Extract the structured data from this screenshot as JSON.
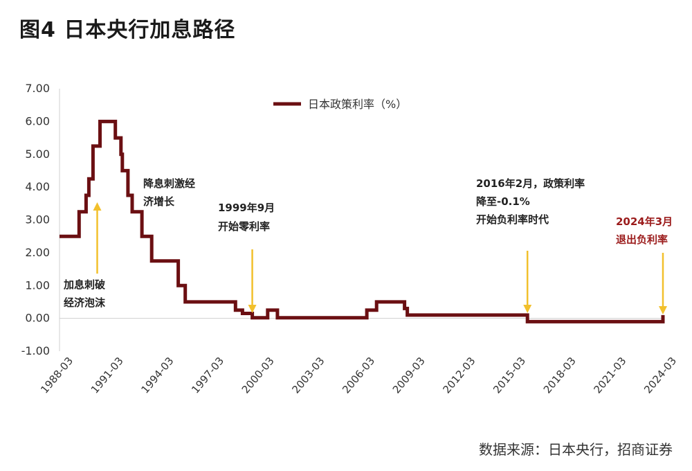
{
  "title": "图4  日本央行加息路径",
  "source": "数据来源：日本央行，招商证券",
  "colors": {
    "line": "#6b0f12",
    "arrow": "#f2c02c",
    "annotation_red": "#9b1b1b"
  },
  "chart_data": {
    "type": "line",
    "legend": {
      "label": "日本政策利率（%）",
      "placement": "top-center"
    },
    "ylim": [
      -1.0,
      7.0
    ],
    "yticks": [
      "7.00",
      "6.00",
      "5.00",
      "4.00",
      "3.00",
      "2.00",
      "1.00",
      "0.00",
      "-1.00"
    ],
    "xlim": [
      "1988-03",
      "2024-03"
    ],
    "xticks": [
      "1988-03",
      "1991-03",
      "1994-03",
      "1997-03",
      "2000-03",
      "2003-03",
      "2006-03",
      "2009-03",
      "2012-03",
      "2015-03",
      "2018-03",
      "2021-03",
      "2024-03"
    ],
    "series": [
      {
        "name": "日本政策利率（%）",
        "step": true,
        "points": [
          [
            "1988-03",
            2.5
          ],
          [
            "1989-05",
            3.25
          ],
          [
            "1989-10",
            3.75
          ],
          [
            "1989-12",
            4.25
          ],
          [
            "1990-03",
            5.25
          ],
          [
            "1990-08",
            6.0
          ],
          [
            "1991-07",
            5.5
          ],
          [
            "1991-11",
            5.0
          ],
          [
            "1991-12",
            4.5
          ],
          [
            "1992-04",
            3.75
          ],
          [
            "1992-07",
            3.25
          ],
          [
            "1993-02",
            2.5
          ],
          [
            "1993-09",
            1.75
          ],
          [
            "1995-04",
            1.0
          ],
          [
            "1995-09",
            0.5
          ],
          [
            "1998-09",
            0.25
          ],
          [
            "1999-02",
            0.15
          ],
          [
            "1999-09",
            0.02
          ],
          [
            "2000-08",
            0.25
          ],
          [
            "2001-03",
            0.02
          ],
          [
            "2006-07",
            0.25
          ],
          [
            "2007-02",
            0.5
          ],
          [
            "2008-10",
            0.3
          ],
          [
            "2008-12",
            0.1
          ],
          [
            "2016-02",
            -0.1
          ],
          [
            "2024-03",
            0.1
          ]
        ]
      }
    ],
    "annotations": [
      {
        "text_lines": [
          "加息刺破",
          "经济泡沫"
        ],
        "arrow_date": "1990-06",
        "arrow_direction": "up"
      },
      {
        "text_lines": [
          "降息刺激经",
          "济增长"
        ],
        "arrow_date": null,
        "arrow_direction": null
      },
      {
        "text_lines": [
          "1999年9月",
          "开始零利率"
        ],
        "arrow_date": "1999-09",
        "arrow_direction": "down"
      },
      {
        "text_lines": [
          "2016年2月，政策利率",
          "降至-0.1%",
          "开始负利率时代"
        ],
        "arrow_date": "2016-02",
        "arrow_direction": "down"
      },
      {
        "text_lines": [
          "2024年3月",
          "退出负利率"
        ],
        "arrow_date": "2024-03",
        "arrow_direction": "down",
        "color": "red"
      }
    ]
  }
}
